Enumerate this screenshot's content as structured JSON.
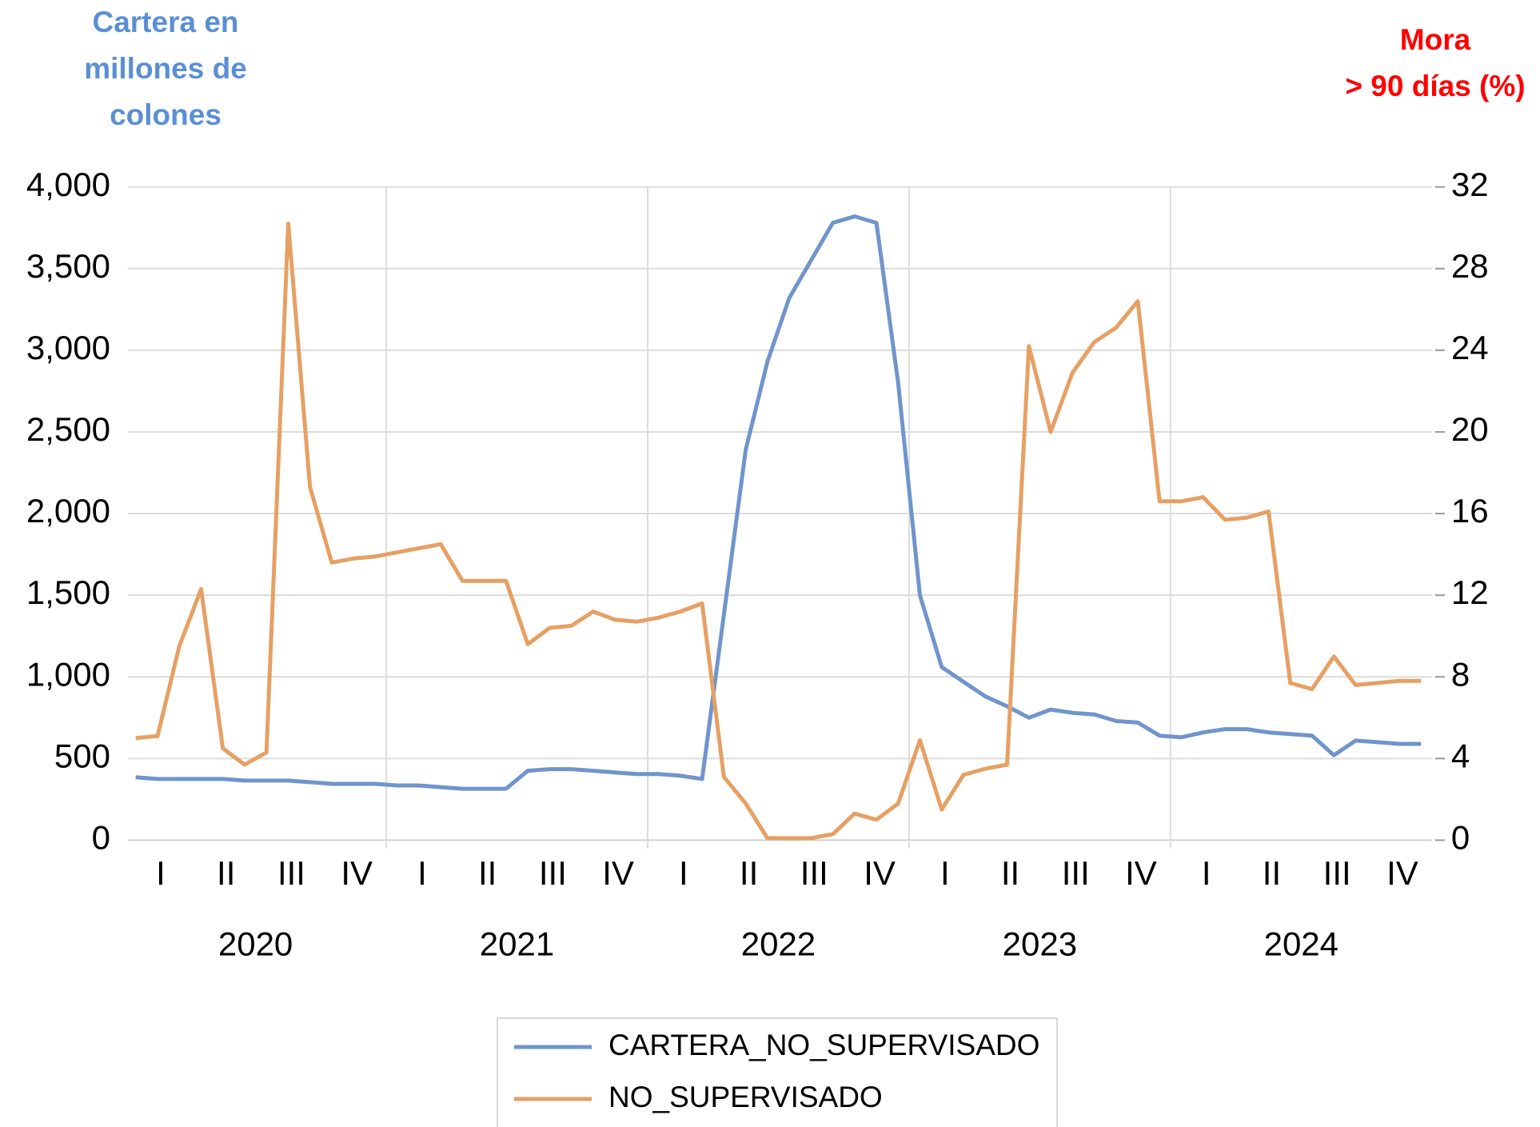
{
  "chart_data": {
    "type": "line",
    "y_title": [
      "Cartera en",
      "millones de",
      "colones"
    ],
    "y2_title": [
      "Mora",
      "> 90 días (%)"
    ],
    "categories": [
      null,
      "I",
      null,
      null,
      "II",
      null,
      null,
      "III",
      null,
      null,
      "IV",
      null,
      null,
      "I",
      null,
      null,
      "II",
      null,
      null,
      "III",
      null,
      null,
      "IV",
      null,
      null,
      "I",
      null,
      null,
      "II",
      null,
      null,
      "III",
      null,
      null,
      "IV",
      null,
      null,
      "I",
      null,
      null,
      "II",
      null,
      null,
      "III",
      null,
      null,
      "IV",
      null,
      null,
      "I",
      null,
      null,
      "II",
      null,
      null,
      "III",
      null,
      null,
      "IV",
      null
    ],
    "years": [
      "2020",
      "2021",
      "2022",
      "2023",
      "2024"
    ],
    "series": [
      {
        "name": "CARTERA_NO_SUPERVISADO",
        "color": "#7094cc",
        "values": [
          385,
          375,
          375,
          375,
          375,
          365,
          365,
          365,
          355,
          345,
          345,
          345,
          335,
          335,
          325,
          315,
          315,
          315,
          425,
          435,
          435,
          425,
          415,
          405,
          405,
          395,
          375,
          1380,
          2390,
          2930,
          3320,
          3550,
          3780,
          3820,
          3780,
          2800,
          1500,
          1060,
          970,
          880,
          820,
          750,
          800,
          780,
          770,
          730,
          720,
          640,
          630,
          660,
          680,
          680,
          660,
          650,
          640,
          520,
          610,
          600,
          590,
          590
        ]
      },
      {
        "name": "NO_SUPERVISADO",
        "color": "#e6a064",
        "axis": "y2",
        "values": [
          5.0,
          5.1,
          9.5,
          12.3,
          4.5,
          3.7,
          4.3,
          30.2,
          17.3,
          13.6,
          13.8,
          13.9,
          14.1,
          14.3,
          14.5,
          12.7,
          12.7,
          12.7,
          9.6,
          10.4,
          10.5,
          11.2,
          10.8,
          10.7,
          10.9,
          11.2,
          11.6,
          3.1,
          1.8,
          0.1,
          0.1,
          0.1,
          0.3,
          1.3,
          1.0,
          1.8,
          4.9,
          1.5,
          3.2,
          3.5,
          3.7,
          24.2,
          20.0,
          22.9,
          24.4,
          25.1,
          26.4,
          16.6,
          16.6,
          16.8,
          15.7,
          15.8,
          16.1,
          7.7,
          7.4,
          9.0,
          7.6,
          7.7,
          7.8,
          7.8
        ]
      }
    ],
    "ylim": [
      0,
      4000
    ],
    "yticks": [
      0,
      500,
      {
        "value": 1000,
        "label": "1,000"
      },
      {
        "value": 1500,
        "label": "1,500"
      },
      {
        "value": 2000,
        "label": "2,000"
      },
      {
        "value": 2500,
        "label": "2,500"
      },
      {
        "value": 3000,
        "label": "3,000"
      },
      {
        "value": 3500,
        "label": "3,500"
      },
      {
        "value": 4000,
        "label": "4,000"
      }
    ],
    "y2lim": [
      0,
      32
    ],
    "y2ticks": [
      0,
      4,
      8,
      12,
      16,
      20,
      24,
      28,
      32
    ],
    "grid": true,
    "legend": "bottom"
  }
}
